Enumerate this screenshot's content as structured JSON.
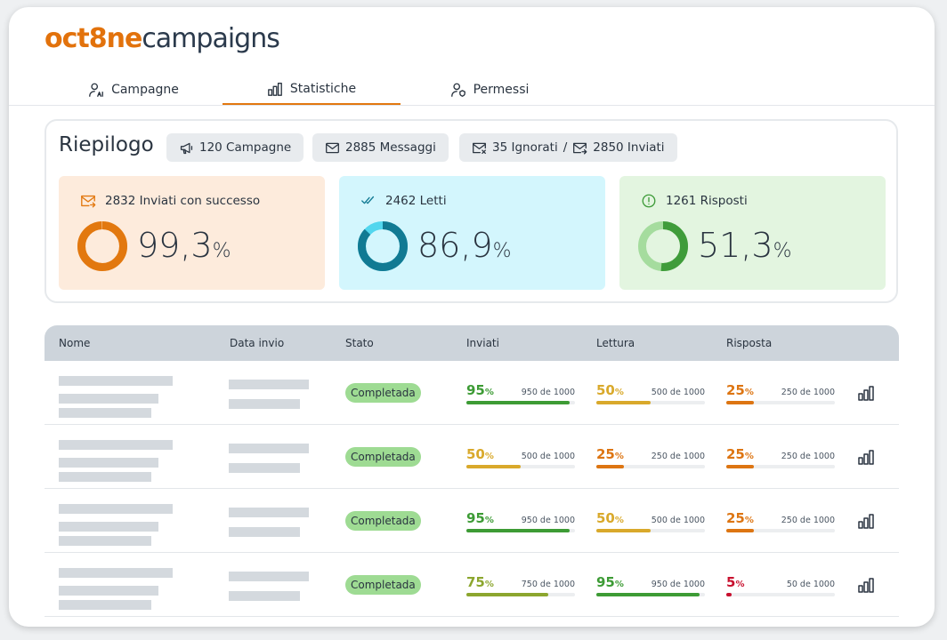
{
  "brand": {
    "logo": "oct8ne",
    "name": "campaigns"
  },
  "tabs": [
    {
      "label": "Campagne",
      "active": false
    },
    {
      "label": "Statistiche",
      "active": true
    },
    {
      "label": "Permessi",
      "active": false
    }
  ],
  "summary": {
    "title": "Riepilogo",
    "chips": [
      {
        "parts": [
          "120 Campagne"
        ]
      },
      {
        "parts": [
          "2885 Messaggi"
        ]
      },
      {
        "parts": [
          "35 Ignorati",
          "2850 Inviati"
        ],
        "separator": "/"
      }
    ],
    "unit": "%",
    "cards": [
      {
        "label": "2832 Inviati con successo",
        "value": 99.3,
        "value_label": "99,3",
        "color": "#e2780f",
        "track": "#f3b77a",
        "bg": "#fdebdc"
      },
      {
        "label": "2462 Letti",
        "value": 86.9,
        "value_label": "86,9",
        "color": "#117a93",
        "track": "#52d6ee",
        "bg": "#d3f6fd"
      },
      {
        "label": "1261 Risposti",
        "value": 51.3,
        "value_label": "51,3",
        "color": "#3f9c3a",
        "track": "#a5dc9e",
        "bg": "#e3f5e0"
      }
    ]
  },
  "table": {
    "columns": [
      "Nome",
      "Data invio",
      "Stato",
      "Inviati",
      "Lettura",
      "Risposta"
    ],
    "unit": "%",
    "rows": [
      {
        "status": "Completada",
        "metrics": [
          {
            "value": 95,
            "detail": "950 de 1000",
            "color": "#3d9b35"
          },
          {
            "value": 50,
            "detail": "500 de 1000",
            "color": "#d9a92b"
          },
          {
            "value": 25,
            "detail": "250 de 1000",
            "color": "#dd7512"
          }
        ]
      },
      {
        "status": "Completada",
        "metrics": [
          {
            "value": 50,
            "detail": "500 de 1000",
            "color": "#d9a92b"
          },
          {
            "value": 25,
            "detail": "250 de 1000",
            "color": "#dd7512"
          },
          {
            "value": 25,
            "detail": "250 de 1000",
            "color": "#dd7512"
          }
        ]
      },
      {
        "status": "Completada",
        "metrics": [
          {
            "value": 95,
            "detail": "950 de 1000",
            "color": "#3d9b35"
          },
          {
            "value": 50,
            "detail": "500 de 1000",
            "color": "#d9a92b"
          },
          {
            "value": 25,
            "detail": "250 de 1000",
            "color": "#dd7512"
          }
        ]
      },
      {
        "status": "Completada",
        "metrics": [
          {
            "value": 75,
            "detail": "750 de 1000",
            "color": "#8ca62e"
          },
          {
            "value": 95,
            "detail": "950 de 1000",
            "color": "#3d9b35"
          },
          {
            "value": 5,
            "detail": "50 de 1000",
            "color": "#c8102e"
          }
        ]
      }
    ]
  }
}
